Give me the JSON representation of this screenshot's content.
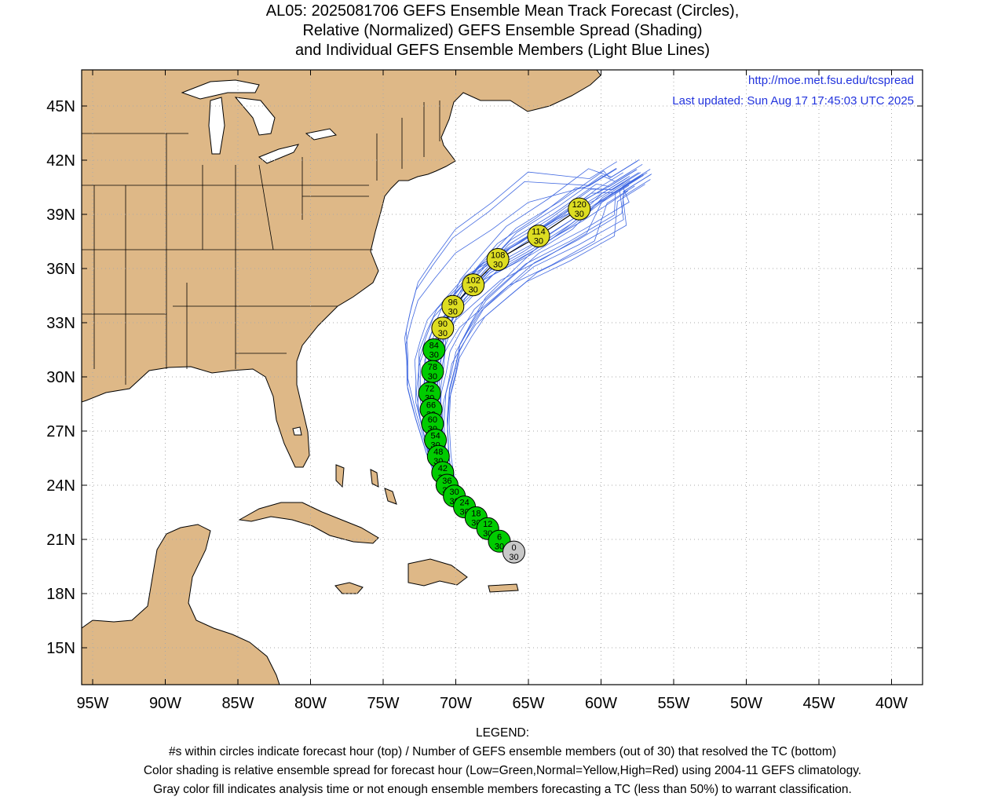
{
  "title": {
    "line1": "AL05: 2025081706 GEFS Ensemble Mean Track Forecast (Circles),",
    "line2": "Relative (Normalized) GEFS Ensemble Spread (Shading)",
    "line3": "and Individual GEFS Ensemble Members (Light Blue Lines)"
  },
  "map": {
    "url": "http://moe.met.fsu.edu/tcspread",
    "updated": "Last updated: Sun Aug 17 17:45:03 UTC 2025",
    "lat_labels": [
      "45N",
      "42N",
      "39N",
      "36N",
      "33N",
      "30N",
      "27N",
      "24N",
      "21N",
      "18N",
      "15N"
    ],
    "lon_labels": [
      "95W",
      "90W",
      "85W",
      "80W",
      "75W",
      "70W",
      "65W",
      "60W",
      "55W",
      "50W",
      "45W",
      "40W"
    ],
    "colors": {
      "land": "#deb887",
      "ocean": "#ffffff",
      "member_line": "#4169e1",
      "mean_line": "#000000",
      "low_spread": "#00cc00",
      "normal_spread": "#dddd22",
      "analysis": "#c8c8c8"
    }
  },
  "forecast_points": [
    {
      "hour": "0",
      "members": "30",
      "lat": 20.3,
      "lon": -66.0,
      "category": "analysis"
    },
    {
      "hour": "6",
      "members": "30",
      "lat": 20.9,
      "lon": -67.0,
      "category": "low"
    },
    {
      "hour": "12",
      "members": "30",
      "lat": 21.6,
      "lon": -67.8,
      "category": "low"
    },
    {
      "hour": "18",
      "members": "30",
      "lat": 22.2,
      "lon": -68.6,
      "category": "low"
    },
    {
      "hour": "24",
      "members": "30",
      "lat": 22.8,
      "lon": -69.4,
      "category": "low"
    },
    {
      "hour": "30",
      "members": "30",
      "lat": 23.4,
      "lon": -70.1,
      "category": "low"
    },
    {
      "hour": "36",
      "members": "30",
      "lat": 24.0,
      "lon": -70.6,
      "category": "low"
    },
    {
      "hour": "42",
      "members": "30",
      "lat": 24.7,
      "lon": -70.9,
      "category": "low"
    },
    {
      "hour": "48",
      "members": "30",
      "lat": 25.6,
      "lon": -71.2,
      "category": "low"
    },
    {
      "hour": "54",
      "members": "30",
      "lat": 26.5,
      "lon": -71.4,
      "category": "low"
    },
    {
      "hour": "60",
      "members": "30",
      "lat": 27.4,
      "lon": -71.6,
      "category": "low"
    },
    {
      "hour": "66",
      "members": "30",
      "lat": 28.2,
      "lon": -71.7,
      "category": "low"
    },
    {
      "hour": "72",
      "members": "30",
      "lat": 29.1,
      "lon": -71.8,
      "category": "low"
    },
    {
      "hour": "78",
      "members": "30",
      "lat": 30.3,
      "lon": -71.6,
      "category": "low"
    },
    {
      "hour": "84",
      "members": "30",
      "lat": 31.5,
      "lon": -71.5,
      "category": "low"
    },
    {
      "hour": "90",
      "members": "30",
      "lat": 32.7,
      "lon": -70.9,
      "category": "normal"
    },
    {
      "hour": "96",
      "members": "30",
      "lat": 33.9,
      "lon": -70.2,
      "category": "normal"
    },
    {
      "hour": "102",
      "members": "30",
      "lat": 35.1,
      "lon": -68.8,
      "category": "normal"
    },
    {
      "hour": "108",
      "members": "30",
      "lat": 36.5,
      "lon": -67.1,
      "category": "normal"
    },
    {
      "hour": "114",
      "members": "30",
      "lat": 37.8,
      "lon": -64.3,
      "category": "normal"
    },
    {
      "hour": "120",
      "members": "30",
      "lat": 39.3,
      "lon": -61.5,
      "category": "normal"
    }
  ],
  "legend": {
    "heading": "LEGEND:",
    "line1": "#s within circles indicate forecast hour (top) / Number of GEFS ensemble members (out of 30) that resolved the TC (bottom)",
    "line2": "Color shading is relative ensemble spread for forecast hour (Low=Green,Normal=Yellow,High=Red) using 2004-11 GEFS climatology.",
    "line3": "Gray color fill indicates analysis time or not enough ensemble members forecasting a TC (less than 50%) to warrant classification."
  }
}
